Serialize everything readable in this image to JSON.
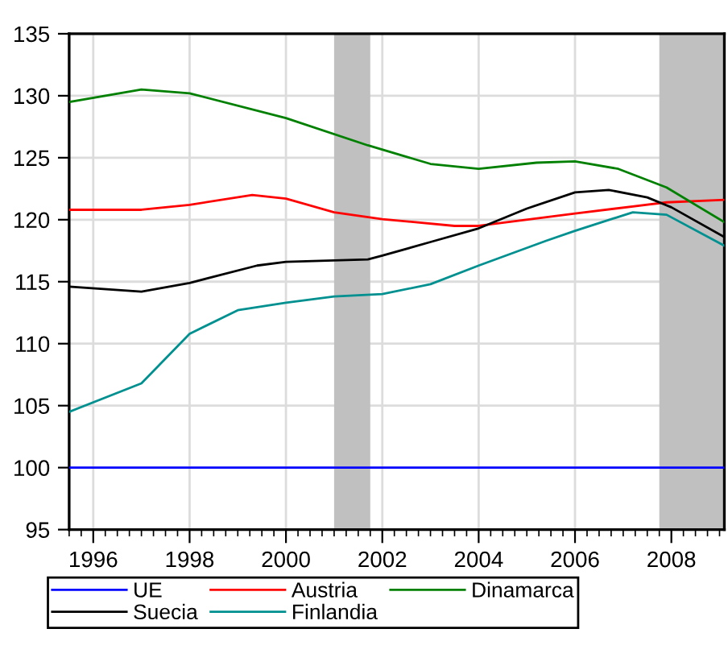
{
  "chart_data": {
    "type": "line",
    "xlim": [
      1995.5,
      2009.1
    ],
    "ylim": [
      95,
      135
    ],
    "xticks": [
      1996,
      1998,
      2000,
      2002,
      2004,
      2006,
      2008
    ],
    "yticks": [
      95,
      100,
      105,
      110,
      115,
      120,
      125,
      130,
      135
    ],
    "grid": true,
    "legend": "bottom",
    "line_style": "solid",
    "marker": "none",
    "bands": [
      {
        "axis": "x",
        "from": 2001.0,
        "to": 2001.75,
        "color": "#c0c0c0"
      },
      {
        "axis": "x",
        "from": 2007.75,
        "to": 2009.1,
        "color": "#c0c0c0"
      }
    ],
    "series": [
      {
        "name": "UE",
        "color": "#0000ff",
        "x": [
          1995.5,
          2009.1
        ],
        "values": [
          100,
          100
        ]
      },
      {
        "name": "Austria",
        "color": "#ff0000",
        "x": [
          1995.5,
          1997,
          1998,
          1999.3,
          2000,
          2001,
          2002,
          2003.5,
          2004,
          2006,
          2007.9,
          2009.1
        ],
        "values": [
          120.8,
          120.8,
          121.2,
          122.0,
          121.7,
          120.6,
          120.05,
          119.5,
          119.5,
          120.5,
          121.4,
          121.6
        ]
      },
      {
        "name": "Dinamarca",
        "color": "#008000",
        "x": [
          1995.5,
          1997,
          1998,
          2000,
          2001.7,
          2003,
          2004,
          2005.2,
          2006,
          2006.9,
          2007.9,
          2009.1
        ],
        "values": [
          129.5,
          130.5,
          130.2,
          128.2,
          126.0,
          124.5,
          124.1,
          124.6,
          124.7,
          124.1,
          122.6,
          119.8
        ]
      },
      {
        "name": "Suecia",
        "color": "#000000",
        "x": [
          1995.5,
          1997,
          1998,
          1999.4,
          2000,
          2001.7,
          2002,
          2003,
          2004,
          2005,
          2006,
          2006.7,
          2007.5,
          2008,
          2009.1
        ],
        "values": [
          114.6,
          114.2,
          114.9,
          116.3,
          116.6,
          116.8,
          117.1,
          118.2,
          119.3,
          120.9,
          122.2,
          122.4,
          121.8,
          121.0,
          118.6
        ]
      },
      {
        "name": "Finlandia",
        "color": "#009090",
        "x": [
          1995.5,
          1997,
          1998,
          1999,
          2000,
          2001,
          2002,
          2003,
          2004,
          2005.4,
          2006,
          2007.2,
          2007.9,
          2009.1
        ],
        "values": [
          104.5,
          106.8,
          110.8,
          112.7,
          113.3,
          113.8,
          114.0,
          114.8,
          116.3,
          118.3,
          119.1,
          120.6,
          120.4,
          117.9
        ]
      }
    ]
  }
}
